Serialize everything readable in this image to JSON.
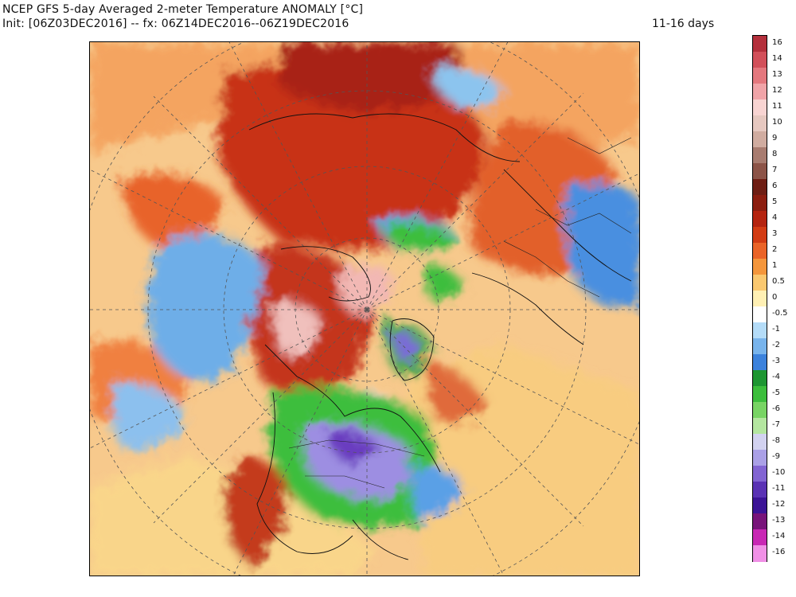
{
  "header": {
    "title": "NCEP GFS 5-day Averaged 2-meter Temperature ANOMALY [°C]",
    "subtitle": "Init: [06Z03DEC2016] -- fx: 06Z14DEC2016--06Z19DEC2016",
    "range": "11-16 days"
  },
  "colorbar": {
    "labels": [
      "16",
      "14",
      "13",
      "12",
      "11",
      "10",
      "9",
      "8",
      "7",
      "6",
      "5",
      "4",
      "3",
      "2",
      "1",
      "0.5",
      "0",
      "-0.5",
      "-1",
      "-2",
      "-3",
      "-4",
      "-5",
      "-6",
      "-7",
      "-8",
      "-9",
      "-10",
      "-11",
      "-12",
      "-13",
      "-14",
      "-16"
    ],
    "colors": [
      "#b4303c",
      "#d2505a",
      "#e4787e",
      "#f0a4a8",
      "#f8d4d2",
      "#e6c8c0",
      "#d0aca0",
      "#a87c70",
      "#8c5448",
      "#6e1e14",
      "#8c1e10",
      "#b42410",
      "#d23c14",
      "#ea6428",
      "#f4963c",
      "#fac870",
      "#fff0b4",
      "#ffffff",
      "#b4dcf8",
      "#78b4ec",
      "#3c82dc",
      "#1e9632",
      "#3cbe3c",
      "#78d464",
      "#b4e6a0",
      "#d2d2f0",
      "#aaa0e6",
      "#8264d2",
      "#5a32b4",
      "#3c1496",
      "#78147a",
      "#c828b4",
      "#f090e6"
    ]
  },
  "map": {
    "projection": "north-polar-stereographic",
    "graticule": "dashed",
    "features": [
      {
        "region": "arctic-siberia",
        "anomaly": "warm",
        "color": "#b42410"
      },
      {
        "region": "canadian-arctic",
        "anomaly": "very-warm",
        "color": "#f8d4d2"
      },
      {
        "region": "north-america-interior",
        "anomaly": "very-cold",
        "color": "#8264d2"
      },
      {
        "region": "eastern-us",
        "anomaly": "cold",
        "color": "#3cbe3c"
      },
      {
        "region": "greenland",
        "anomaly": "cold",
        "color": "#5a32b4"
      },
      {
        "region": "north-pacific",
        "anomaly": "cool",
        "color": "#78b4ec"
      },
      {
        "region": "eastern-europe",
        "anomaly": "cool",
        "color": "#3c82dc"
      },
      {
        "region": "atlantic-subtropics",
        "anomaly": "mild-warm",
        "color": "#fac870"
      }
    ]
  }
}
